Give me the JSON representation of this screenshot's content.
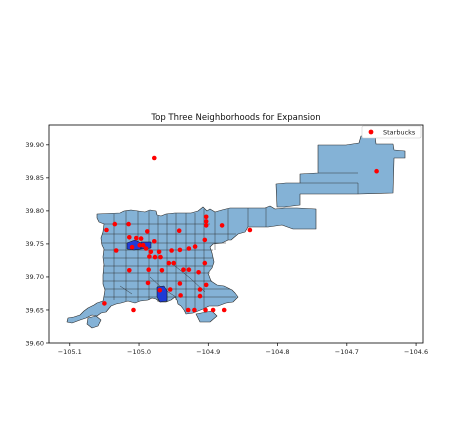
{
  "chart_data": {
    "type": "scatter",
    "title": "Top Three Neighborhoods for Expansion",
    "xlabel": "",
    "ylabel": "",
    "xlim": [
      -105.13,
      -104.59
    ],
    "ylim": [
      39.6,
      39.93
    ],
    "xticks": [
      -105.1,
      -105.0,
      -104.9,
      -104.8,
      -104.7,
      -104.6
    ],
    "xtick_labels": [
      "−105.1",
      "−105.0",
      "−104.9",
      "−104.8",
      "−104.7",
      "−104.6"
    ],
    "yticks": [
      39.6,
      39.65,
      39.7,
      39.75,
      39.8,
      39.85,
      39.9
    ],
    "ytick_labels": [
      "39.60",
      "39.65",
      "39.70",
      "39.75",
      "39.80",
      "39.85",
      "39.90"
    ],
    "grid": false,
    "legend": {
      "position": "top-right",
      "entries": [
        {
          "label": "Starbucks",
          "marker": "circle",
          "color": "#ff0000"
        }
      ]
    },
    "map_fill_color": "#84b2d6",
    "highlight_color": "#1f3bd6",
    "point_color": "#ff0000",
    "series": [
      {
        "name": "Starbucks",
        "points": [
          [
            -105.035,
            39.78
          ],
          [
            -105.015,
            39.78
          ],
          [
            -105.047,
            39.771
          ],
          [
            -105.014,
            39.76
          ],
          [
            -105.004,
            39.759
          ],
          [
            -104.997,
            39.758
          ],
          [
            -104.978,
            39.754
          ],
          [
            -105.033,
            39.74
          ],
          [
            -105.01,
            39.745
          ],
          [
            -104.999,
            39.748
          ],
          [
            -104.994,
            39.748
          ],
          [
            -104.99,
            39.743
          ],
          [
            -104.983,
            39.738
          ],
          [
            -104.971,
            39.738
          ],
          [
            -104.953,
            39.74
          ],
          [
            -104.941,
            39.741
          ],
          [
            -104.928,
            39.743
          ],
          [
            -104.919,
            39.746
          ],
          [
            -104.905,
            39.756
          ],
          [
            -104.988,
            39.769
          ],
          [
            -104.942,
            39.77
          ],
          [
            -104.903,
            39.778
          ],
          [
            -104.903,
            39.791
          ],
          [
            -104.903,
            39.784
          ],
          [
            -104.88,
            39.778
          ],
          [
            -104.84,
            39.771
          ],
          [
            -104.985,
            39.731
          ],
          [
            -104.977,
            39.73
          ],
          [
            -104.969,
            39.73
          ],
          [
            -104.957,
            39.721
          ],
          [
            -104.95,
            39.721
          ],
          [
            -104.905,
            39.721
          ],
          [
            -105.014,
            39.71
          ],
          [
            -104.986,
            39.711
          ],
          [
            -104.967,
            39.71
          ],
          [
            -104.936,
            39.711
          ],
          [
            -104.928,
            39.711
          ],
          [
            -104.914,
            39.707
          ],
          [
            -104.987,
            39.691
          ],
          [
            -104.941,
            39.69
          ],
          [
            -104.903,
            39.688
          ],
          [
            -104.97,
            39.68
          ],
          [
            -104.955,
            39.681
          ],
          [
            -104.94,
            39.672
          ],
          [
            -104.912,
            39.681
          ],
          [
            -104.912,
            39.671
          ],
          [
            -105.05,
            39.66
          ],
          [
            -105.008,
            39.65
          ],
          [
            -104.929,
            39.65
          ],
          [
            -104.92,
            39.65
          ],
          [
            -104.904,
            39.65
          ],
          [
            -104.893,
            39.65
          ],
          [
            -104.877,
            39.65
          ],
          [
            -104.657,
            39.86
          ],
          [
            -104.978,
            39.88
          ]
        ]
      }
    ],
    "highlighted_neighborhoods": 3
  }
}
